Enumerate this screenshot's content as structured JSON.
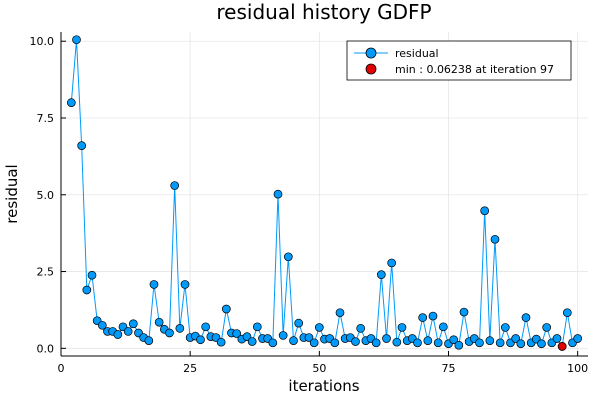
{
  "chart_data": {
    "type": "scatter",
    "title": "residual history GDFP",
    "xlabel": "iterations",
    "ylabel": "residual",
    "xlim": [
      0,
      102
    ],
    "ylim": [
      -0.25,
      10.3
    ],
    "xticks": [
      0,
      25,
      50,
      75,
      100
    ],
    "yticks": [
      0.0,
      2.5,
      5.0,
      7.5,
      10.0
    ],
    "xtick_labels": [
      "0",
      "25",
      "50",
      "75",
      "100"
    ],
    "ytick_labels": [
      "0.0",
      "2.5",
      "5.0",
      "7.5",
      "10.0"
    ],
    "grid": true,
    "legend_position": "top-right",
    "series": [
      {
        "name": "residual",
        "type": "line+markers",
        "color": "#009AFA",
        "x": [
          2,
          3,
          4,
          5,
          6,
          7,
          8,
          9,
          10,
          11,
          12,
          13,
          14,
          15,
          16,
          17,
          18,
          19,
          20,
          21,
          22,
          23,
          24,
          25,
          26,
          27,
          28,
          29,
          30,
          31,
          32,
          33,
          34,
          35,
          36,
          37,
          38,
          39,
          40,
          41,
          42,
          43,
          44,
          45,
          46,
          47,
          48,
          49,
          50,
          51,
          52,
          53,
          54,
          55,
          56,
          57,
          58,
          59,
          60,
          61,
          62,
          63,
          64,
          65,
          66,
          67,
          68,
          69,
          70,
          71,
          72,
          73,
          74,
          75,
          76,
          77,
          78,
          79,
          80,
          81,
          82,
          83,
          84,
          85,
          86,
          87,
          88,
          89,
          90,
          91,
          92,
          93,
          94,
          95,
          96,
          97,
          98,
          99,
          100
        ],
        "y": [
          8.0,
          10.05,
          6.6,
          1.9,
          2.38,
          0.9,
          0.75,
          0.55,
          0.55,
          0.45,
          0.7,
          0.55,
          0.8,
          0.5,
          0.35,
          0.25,
          2.08,
          0.85,
          0.62,
          0.5,
          5.3,
          0.65,
          2.08,
          0.35,
          0.4,
          0.28,
          0.7,
          0.38,
          0.35,
          0.2,
          1.28,
          0.5,
          0.48,
          0.3,
          0.38,
          0.22,
          0.7,
          0.32,
          0.32,
          0.18,
          5.02,
          0.42,
          2.98,
          0.25,
          0.82,
          0.35,
          0.35,
          0.18,
          0.68,
          0.3,
          0.32,
          0.18,
          1.16,
          0.32,
          0.35,
          0.22,
          0.65,
          0.25,
          0.32,
          0.18,
          2.4,
          0.32,
          2.78,
          0.2,
          0.68,
          0.25,
          0.32,
          0.18,
          1.0,
          0.25,
          1.05,
          0.18,
          0.7,
          0.15,
          0.28,
          0.1,
          1.18,
          0.22,
          0.32,
          0.18,
          4.48,
          0.25,
          3.55,
          0.18,
          0.68,
          0.18,
          0.32,
          0.15,
          1.0,
          0.18,
          0.3,
          0.15,
          0.68,
          0.18,
          0.32,
          0.06238,
          1.16,
          0.18,
          0.32
        ]
      },
      {
        "name": "min : 0.06238 at iteration 97",
        "type": "marker",
        "color": "#E00000",
        "x": [
          97
        ],
        "y": [
          0.06238
        ]
      }
    ]
  }
}
